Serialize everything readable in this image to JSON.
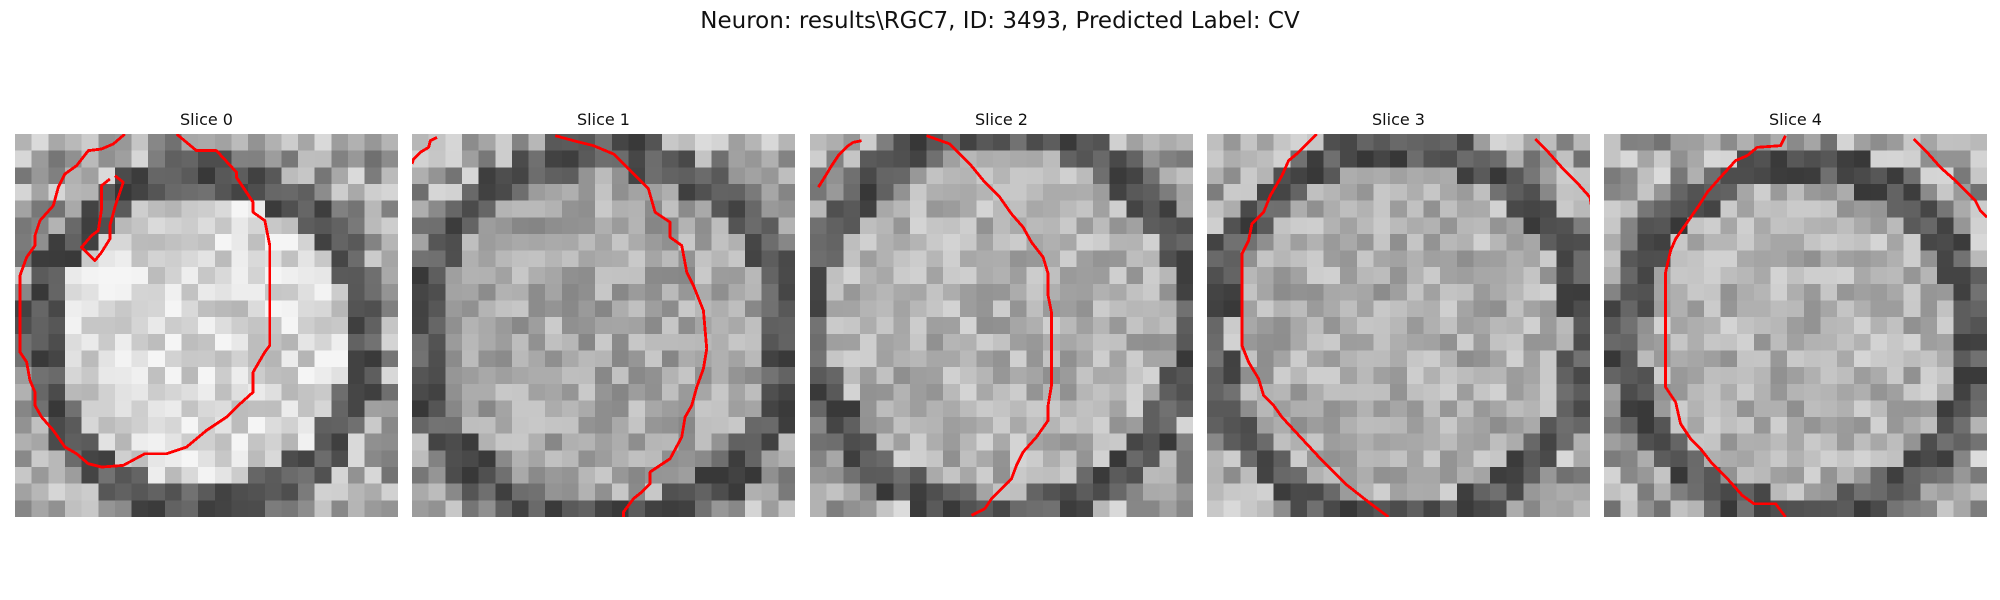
{
  "figure": {
    "title": "Neuron: results\\RGC7, ID: 3493, Predicted Label: CV",
    "overlay_color": "#ff0000",
    "colormap": "grayscale"
  },
  "slices": [
    {
      "title": "Slice 0",
      "contours": [
        [
          [
            9.7,
            0
          ],
          [
            10.9,
            1.0
          ],
          [
            12.1,
            1.0
          ],
          [
            13.3,
            2.3
          ],
          [
            13.3,
            2.6
          ],
          [
            14.3,
            4.1
          ],
          [
            14.3,
            4.7
          ],
          [
            15.0,
            5.2
          ],
          [
            15.3,
            6.7
          ],
          [
            15.3,
            12.7
          ],
          [
            15.0,
            13.1
          ],
          [
            14.3,
            14.3
          ],
          [
            14.3,
            15.5
          ],
          [
            13.3,
            16.4
          ],
          [
            12.7,
            17.0
          ],
          [
            11.5,
            17.8
          ],
          [
            10.9,
            18.3
          ],
          [
            10.3,
            18.8
          ],
          [
            9.1,
            19.2
          ],
          [
            7.8,
            19.2
          ],
          [
            6.5,
            19.9
          ],
          [
            5.2,
            20.0
          ],
          [
            4.4,
            19.8
          ],
          [
            3.7,
            19.2
          ],
          [
            3.0,
            18.8
          ],
          [
            2.3,
            17.8
          ],
          [
            1.6,
            17.0
          ],
          [
            1.2,
            16.3
          ],
          [
            1.2,
            15.5
          ],
          [
            0.9,
            14.8
          ],
          [
            0.7,
            13.7
          ],
          [
            0.3,
            13.1
          ],
          [
            0.3,
            8.5
          ],
          [
            0.7,
            7.4
          ],
          [
            1.2,
            6.7
          ],
          [
            1.2,
            6.1
          ],
          [
            1.5,
            5.2
          ],
          [
            2.3,
            4.3
          ],
          [
            2.6,
            3.2
          ],
          [
            3.0,
            2.4
          ],
          [
            3.7,
            1.9
          ],
          [
            4.4,
            1.0
          ],
          [
            5.2,
            0.9
          ],
          [
            5.9,
            0.6
          ],
          [
            6.6,
            0
          ]
        ],
        [
          [
            6.0,
            2.5
          ],
          [
            6.5,
            2.9
          ],
          [
            6.2,
            3.8
          ],
          [
            6.0,
            4.4
          ],
          [
            5.7,
            5.5
          ],
          [
            5.7,
            6.3
          ],
          [
            5.2,
            7.1
          ],
          [
            4.8,
            7.6
          ],
          [
            4.4,
            7.2
          ],
          [
            4.0,
            6.8
          ],
          [
            4.6,
            6.1
          ],
          [
            5.0,
            5.8
          ],
          [
            5.2,
            4.5
          ],
          [
            5.2,
            3.1
          ],
          [
            5.7,
            2.7
          ]
        ]
      ]
    },
    {
      "title": "Slice 1",
      "contours": [
        [
          [
            8.6,
            0.1
          ],
          [
            9.7,
            0.4
          ],
          [
            10.9,
            0.7
          ],
          [
            12.1,
            1.2
          ],
          [
            13.3,
            2.4
          ],
          [
            14.2,
            3.3
          ],
          [
            14.6,
            4.7
          ],
          [
            15.5,
            5.3
          ],
          [
            15.5,
            6.2
          ],
          [
            16.2,
            6.7
          ],
          [
            16.5,
            8.3
          ],
          [
            16.9,
            9.1
          ],
          [
            17.5,
            10.6
          ],
          [
            17.7,
            12.9
          ],
          [
            17.5,
            14.1
          ],
          [
            17.1,
            15.2
          ],
          [
            16.8,
            16.3
          ],
          [
            16.4,
            17.0
          ],
          [
            16.2,
            18.2
          ],
          [
            15.5,
            19.5
          ],
          [
            14.3,
            20.3
          ],
          [
            14.3,
            21.0
          ],
          [
            13.8,
            21.5
          ],
          [
            13.3,
            21.9
          ],
          [
            12.7,
            22.7
          ],
          [
            12.7,
            23.0
          ]
        ],
        [
          [
            1.5,
            0.2
          ],
          [
            1.1,
            0.4
          ],
          [
            1.0,
            0.8
          ],
          [
            0.5,
            1.1
          ],
          [
            0.1,
            1.5
          ],
          [
            0,
            1.8
          ]
        ]
      ]
    },
    {
      "title": "Slice 2",
      "contours": [
        [
          [
            7.0,
            0.1
          ],
          [
            8.4,
            0.6
          ],
          [
            9.6,
            1.8
          ],
          [
            10.5,
            2.9
          ],
          [
            11.4,
            3.8
          ],
          [
            12.1,
            4.8
          ],
          [
            12.8,
            5.6
          ],
          [
            13.3,
            6.5
          ],
          [
            14.0,
            7.4
          ],
          [
            14.3,
            8.4
          ],
          [
            14.3,
            9.7
          ],
          [
            14.5,
            10.7
          ],
          [
            14.5,
            13.1
          ],
          [
            14.5,
            15.1
          ],
          [
            14.3,
            16.3
          ],
          [
            14.3,
            17.2
          ],
          [
            13.6,
            18.2
          ],
          [
            12.8,
            19.1
          ],
          [
            12.4,
            19.9
          ],
          [
            12.1,
            20.7
          ],
          [
            11.4,
            21.4
          ],
          [
            10.9,
            21.9
          ],
          [
            10.5,
            22.5
          ],
          [
            9.7,
            22.9
          ]
        ],
        [
          [
            3.1,
            0.4
          ],
          [
            2.6,
            0.5
          ],
          [
            2.3,
            0.7
          ],
          [
            1.7,
            1.3
          ],
          [
            1.3,
            1.9
          ],
          [
            1.0,
            2.4
          ],
          [
            0.5,
            3.2
          ]
        ]
      ]
    },
    {
      "title": "Slice 3",
      "contours": [
        [
          [
            6.6,
            0
          ],
          [
            6.4,
            0.2
          ],
          [
            5.5,
            1.1
          ],
          [
            4.9,
            1.6
          ],
          [
            4.5,
            2.5
          ],
          [
            3.8,
            3.7
          ],
          [
            3.4,
            4.7
          ],
          [
            2.7,
            5.4
          ],
          [
            2.5,
            6.4
          ],
          [
            2.1,
            7.2
          ],
          [
            2.1,
            12.7
          ],
          [
            2.5,
            13.7
          ],
          [
            3.1,
            14.7
          ],
          [
            3.4,
            15.7
          ],
          [
            4.0,
            16.3
          ],
          [
            4.5,
            17.0
          ],
          [
            5.7,
            18.3
          ],
          [
            7.0,
            19.7
          ],
          [
            8.3,
            21.0
          ],
          [
            9.7,
            22.1
          ],
          [
            10.9,
            23.0
          ]
        ],
        [
          [
            19.7,
            0.3
          ],
          [
            20.5,
            1.1
          ],
          [
            21.3,
            2.0
          ],
          [
            22.2,
            2.9
          ],
          [
            23.0,
            3.8
          ],
          [
            23.1,
            4.4
          ],
          [
            23.1,
            5.1
          ]
        ]
      ]
    },
    {
      "title": "Slice 4",
      "contours": [
        [
          [
            10.9,
            0.1
          ],
          [
            10.6,
            0.7
          ],
          [
            9.2,
            0.8
          ],
          [
            8.6,
            1.3
          ],
          [
            7.9,
            1.6
          ],
          [
            6.9,
            2.7
          ],
          [
            6.2,
            3.5
          ],
          [
            5.7,
            4.3
          ],
          [
            5.0,
            5.3
          ],
          [
            4.3,
            6.3
          ],
          [
            4.0,
            7.0
          ],
          [
            3.7,
            8.3
          ],
          [
            3.7,
            12.7
          ],
          [
            3.7,
            15.2
          ],
          [
            4.3,
            16.1
          ],
          [
            4.6,
            17.4
          ],
          [
            5.2,
            18.3
          ],
          [
            5.8,
            18.9
          ],
          [
            6.5,
            19.8
          ],
          [
            7.5,
            20.8
          ],
          [
            8.3,
            21.7
          ],
          [
            9.0,
            22.2
          ],
          [
            10.3,
            22.2
          ],
          [
            10.9,
            23.0
          ]
        ],
        [
          [
            18.6,
            0.3
          ],
          [
            19.4,
            1.1
          ],
          [
            20.2,
            2.0
          ],
          [
            21.1,
            2.8
          ],
          [
            21.8,
            3.5
          ],
          [
            22.3,
            4.0
          ],
          [
            22.6,
            4.6
          ],
          [
            23.0,
            5.0
          ]
        ]
      ]
    }
  ]
}
